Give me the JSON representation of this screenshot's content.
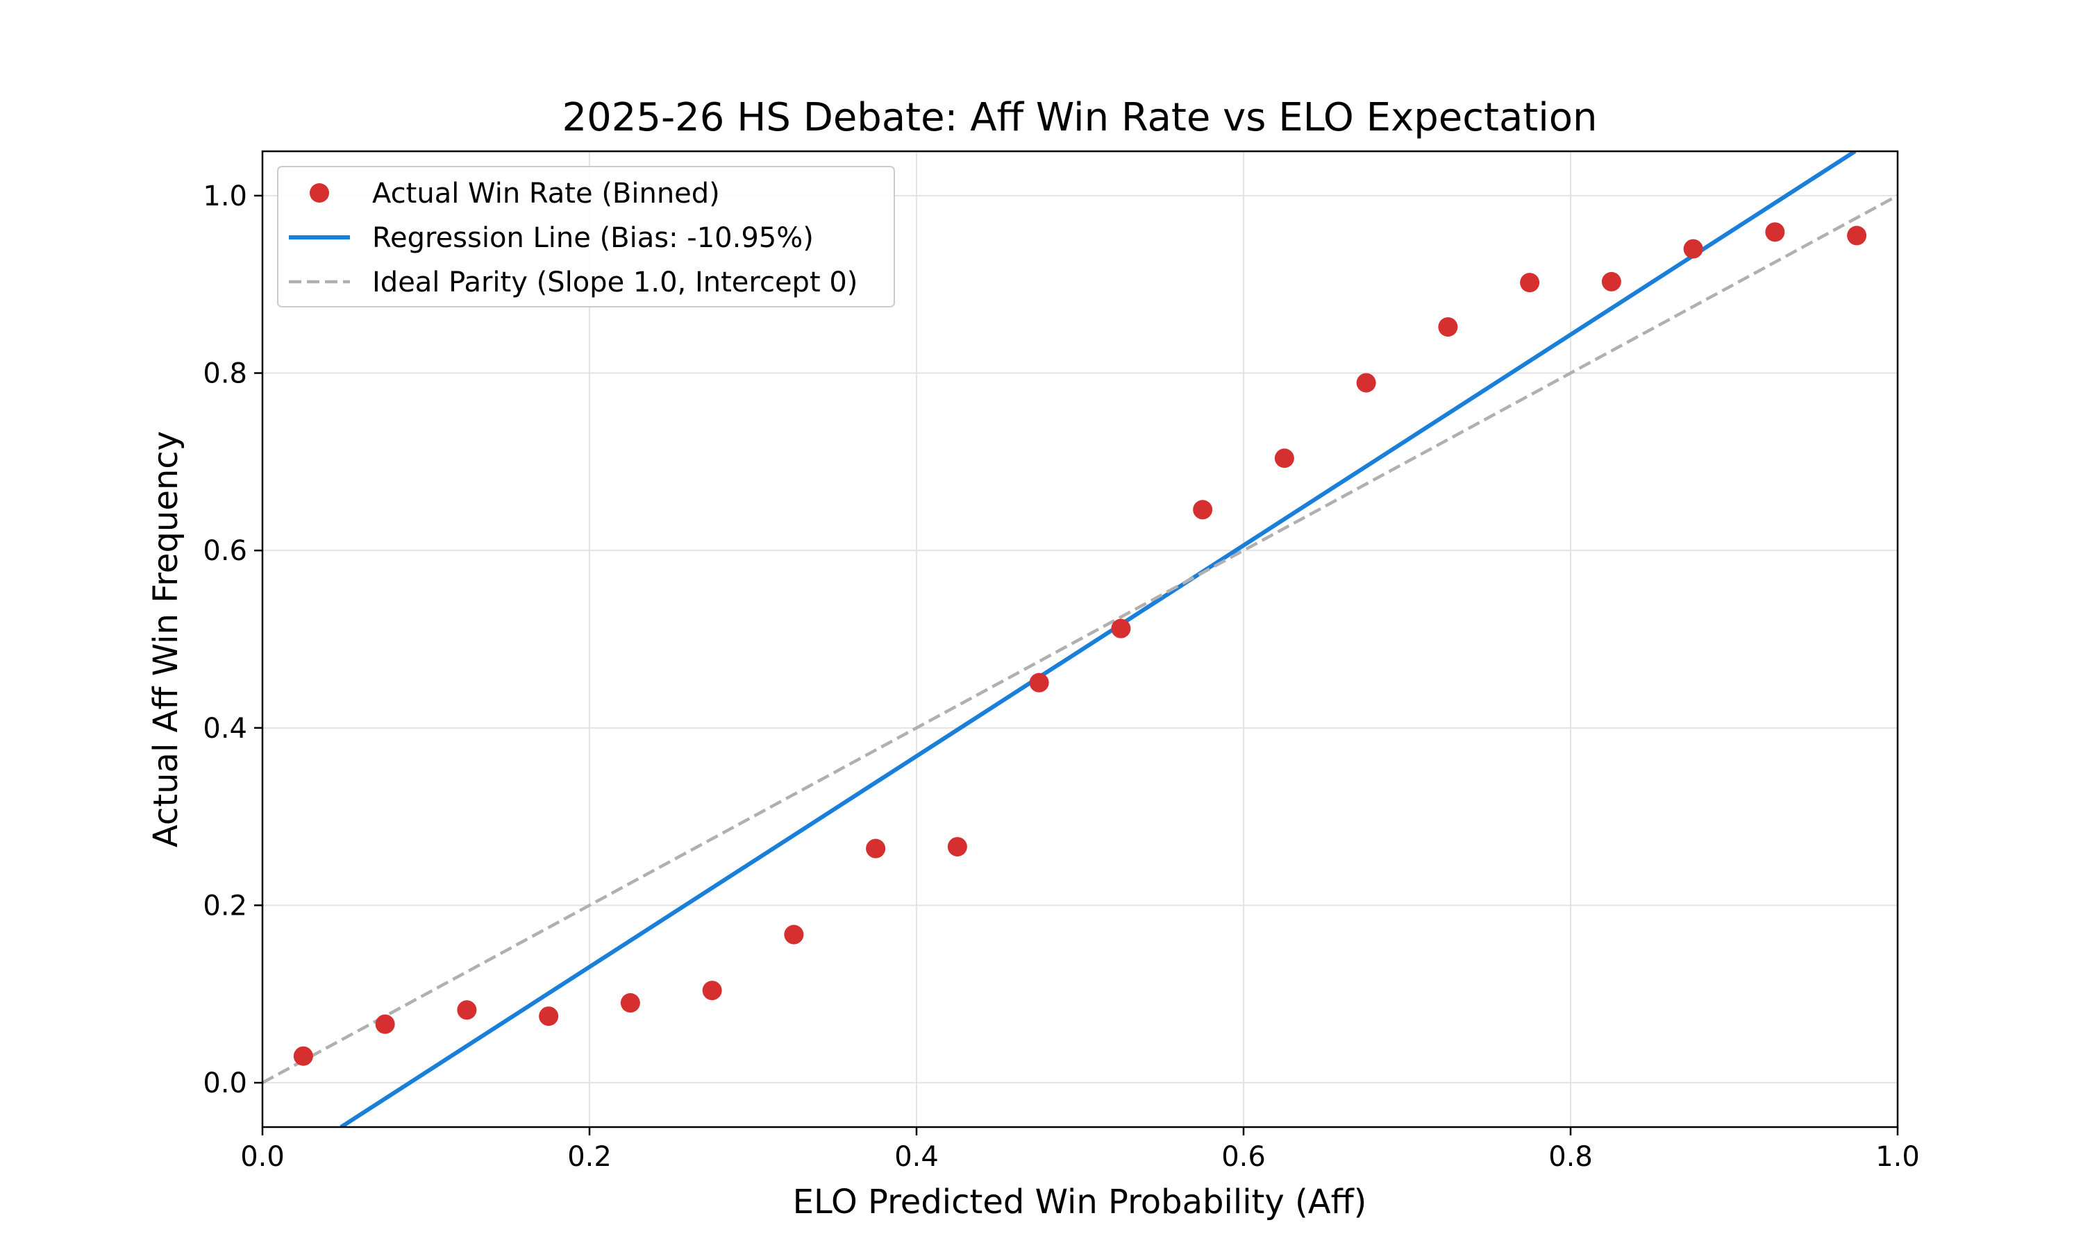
{
  "chart_data": {
    "type": "scatter",
    "title": "2025-26 HS Debate: Aff Win Rate vs ELO Expectation",
    "xlabel": "ELO Predicted Win Probability (Aff)",
    "ylabel": "Actual Aff Win Frequency",
    "xlim": [
      0.0,
      1.0
    ],
    "ylim": [
      -0.05,
      1.05
    ],
    "xticks": [
      "0.0",
      "0.2",
      "0.4",
      "0.6",
      "0.8",
      "1.0"
    ],
    "yticks": [
      "0.0",
      "0.2",
      "0.4",
      "0.6",
      "0.8",
      "1.0"
    ],
    "grid": true,
    "legend_position": "upper-left",
    "series": [
      {
        "name": "Actual Win Rate (Binned)",
        "kind": "scatter",
        "color": "#d62f2f",
        "x": [
          0.025,
          0.075,
          0.125,
          0.175,
          0.225,
          0.275,
          0.325,
          0.375,
          0.425,
          0.475,
          0.525,
          0.575,
          0.625,
          0.675,
          0.725,
          0.775,
          0.825,
          0.875,
          0.925,
          0.975
        ],
        "y": [
          0.03,
          0.066,
          0.082,
          0.075,
          0.09,
          0.104,
          0.167,
          0.264,
          0.266,
          0.451,
          0.512,
          0.646,
          0.704,
          0.789,
          0.852,
          0.902,
          0.903,
          0.94,
          0.959,
          0.955
        ]
      },
      {
        "name": "Regression Line (Bias: -10.95%)",
        "kind": "line",
        "color": "#1a7fd9",
        "x": [
          0.048,
          0.974
        ],
        "y": [
          -0.05,
          1.05
        ]
      },
      {
        "name": "Ideal Parity (Slope 1.0, Intercept 0)",
        "kind": "dashed-line",
        "color": "#b0b0b0",
        "x": [
          0.0,
          1.0
        ],
        "y": [
          0.0,
          1.0
        ]
      }
    ]
  }
}
